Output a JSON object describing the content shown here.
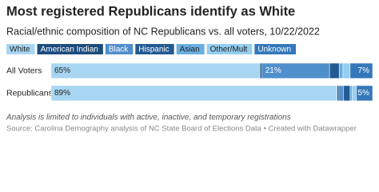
{
  "chart_data": {
    "type": "stacked-bar-horizontal",
    "title": "Most registered Republicans identify as White",
    "subtitle": "Racial/ethnic composition of NC Republicans vs. all voters, 10/22/2022",
    "categories": [
      "All Voters",
      "Republicans"
    ],
    "xlim": [
      0,
      100
    ],
    "series": [
      {
        "name": "White",
        "color": "#a8d6f2",
        "values": [
          65,
          89
        ],
        "value_labels": [
          "65%",
          "89%"
        ]
      },
      {
        "name": "American Indian",
        "color": "#1c4c7e",
        "values": [
          0.6,
          0.5
        ],
        "value_labels": [
          null,
          null
        ]
      },
      {
        "name": "Black",
        "color": "#4f8fcc",
        "values": [
          21,
          1.5
        ],
        "value_labels": [
          "21%",
          null
        ]
      },
      {
        "name": "Hispanic",
        "color": "#235a92",
        "values": [
          3,
          2
        ],
        "value_labels": [
          null,
          null
        ]
      },
      {
        "name": "Asian",
        "color": "#6aafe1",
        "values": [
          1.2,
          0.6
        ],
        "value_labels": [
          null,
          null
        ]
      },
      {
        "name": "Other/Mult",
        "color": "#94cdef",
        "values": [
          2.2,
          1.4
        ],
        "value_labels": [
          null,
          null
        ]
      },
      {
        "name": "Unknown",
        "color": "#3478ba",
        "values": [
          7,
          5
        ],
        "value_labels": [
          "7%",
          "5%"
        ]
      }
    ],
    "notes": "Analysis is limited to individuals with active, inactive, and temporary registrations",
    "source": "Source: Carolina Demography analysis of NC State Board of Elections Data • Created with Datawrapper"
  }
}
